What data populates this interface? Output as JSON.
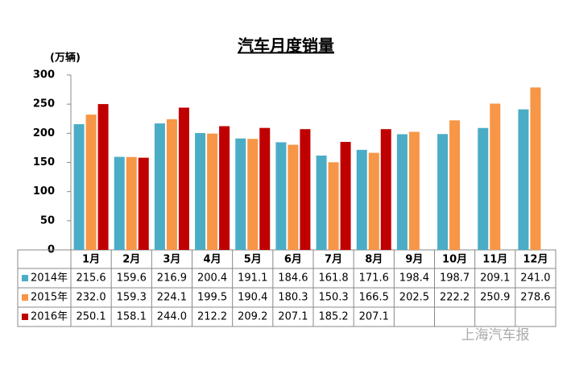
{
  "chart_data": {
    "type": "bar",
    "title": "汽车月度销量",
    "y_label": "(万辆)",
    "categories": [
      "1月",
      "2月",
      "3月",
      "4月",
      "5月",
      "6月",
      "7月",
      "8月",
      "9月",
      "10月",
      "11月",
      "12月"
    ],
    "series": [
      {
        "name": "2014年",
        "color": "#4bacc6",
        "values": [
          215.6,
          159.6,
          216.9,
          200.4,
          191.1,
          184.6,
          161.8,
          171.6,
          198.4,
          198.7,
          209.1,
          241.0
        ],
        "value_labels": [
          "215.6",
          "159.6",
          "216.9",
          "200.4",
          "191.1",
          "184.6",
          "161.8",
          "171.6",
          "198.4",
          "198.7",
          "209.1",
          "241.0"
        ]
      },
      {
        "name": "2015年",
        "color": "#f79646",
        "values": [
          232.0,
          159.3,
          224.1,
          199.5,
          190.4,
          180.3,
          150.3,
          166.5,
          202.5,
          222.2,
          250.9,
          278.6
        ],
        "value_labels": [
          "232.0",
          "159.3",
          "224.1",
          "199.5",
          "190.4",
          "180.3",
          "150.3",
          "166.5",
          "202.5",
          "222.2",
          "250.9",
          "278.6"
        ]
      },
      {
        "name": "2016年",
        "color": "#c00000",
        "values": [
          250.1,
          158.1,
          244.0,
          212.2,
          209.2,
          207.1,
          185.2,
          207.1,
          null,
          null,
          null,
          null
        ],
        "value_labels": [
          "250.1",
          "158.1",
          "244.0",
          "212.2",
          "209.2",
          "207.1",
          "185.2",
          "207.1",
          null,
          null,
          null,
          null
        ]
      }
    ],
    "ylim": [
      0,
      300
    ],
    "yticks": [
      0,
      50,
      100,
      150,
      200,
      250,
      300
    ],
    "grid": false,
    "watermark": "上海汽车报"
  }
}
